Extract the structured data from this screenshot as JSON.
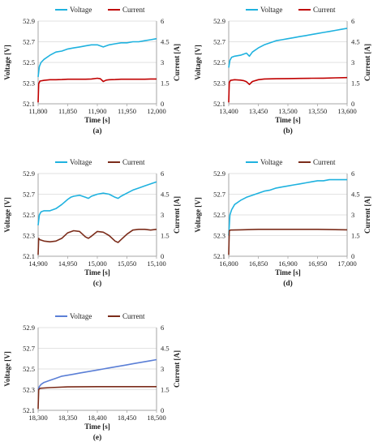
{
  "figure": {
    "background": "#ffffff",
    "axis_color": "#a6a6a6",
    "grid_color": "#d9d9d9",
    "tick_text_color": "#222222"
  },
  "chart_data": [
    {
      "type": "line",
      "panel_label": "(a)",
      "xlabel": "Time [s]",
      "ylabel_left": "Voltage [V]",
      "ylabel_right": "Current [A]",
      "xlim": [
        11800,
        12000
      ],
      "xticks": [
        11800,
        11850,
        11900,
        11950,
        12000
      ],
      "xtick_labels": [
        "11,800",
        "11,850",
        "11,900",
        "11,950",
        "12,000"
      ],
      "ylim_left": [
        52.1,
        52.9
      ],
      "yticks_left": [
        "52.1",
        "52.3",
        "52.5",
        "52.7",
        "52.9"
      ],
      "ylim_right": [
        0,
        6
      ],
      "yticks_right": [
        "0",
        "1.5",
        "3",
        "4.5",
        "6"
      ],
      "grid": "horizontal",
      "legend_position": "top",
      "legend_items": [
        "Voltage",
        "Current"
      ],
      "series": [
        {
          "name": "Voltage",
          "axis": "left",
          "color": "#1fb2df",
          "x": [
            11800,
            11802,
            11805,
            11810,
            11820,
            11830,
            11840,
            11850,
            11860,
            11870,
            11880,
            11890,
            11900,
            11910,
            11920,
            11930,
            11940,
            11950,
            11960,
            11970,
            11980,
            11990,
            12000
          ],
          "y": [
            52.36,
            52.46,
            52.5,
            52.53,
            52.57,
            52.6,
            52.61,
            52.63,
            52.64,
            52.65,
            52.66,
            52.67,
            52.67,
            52.65,
            52.67,
            52.68,
            52.69,
            52.69,
            52.7,
            52.7,
            52.71,
            52.72,
            52.73
          ]
        },
        {
          "name": "Current",
          "axis": "right",
          "color": "#c00000",
          "x": [
            11800,
            11801,
            11803,
            11810,
            11820,
            11830,
            11840,
            11850,
            11860,
            11870,
            11880,
            11890,
            11900,
            11905,
            11910,
            11915,
            11920,
            11930,
            11940,
            11950,
            11960,
            11970,
            11980,
            11990,
            12000
          ],
          "y": [
            0.1,
            1.45,
            1.65,
            1.7,
            1.75,
            1.75,
            1.76,
            1.78,
            1.78,
            1.78,
            1.78,
            1.8,
            1.85,
            1.82,
            1.62,
            1.72,
            1.75,
            1.76,
            1.78,
            1.78,
            1.78,
            1.78,
            1.78,
            1.8,
            1.8
          ]
        }
      ]
    },
    {
      "type": "line",
      "panel_label": "(b)",
      "xlabel": "Time [s]",
      "ylabel_left": "Voltage [V]",
      "ylabel_right": "Current [A]",
      "xlim": [
        13400,
        13600
      ],
      "xticks": [
        13400,
        13450,
        13500,
        13550,
        13600
      ],
      "xtick_labels": [
        "13,400",
        "13,450",
        "13,500",
        "13,550",
        "13,600"
      ],
      "ylim_left": [
        52.1,
        52.9
      ],
      "yticks_left": [
        "52.1",
        "52.3",
        "52.5",
        "52.7",
        "52.9"
      ],
      "ylim_right": [
        0,
        6
      ],
      "yticks_right": [
        "0",
        "1.5",
        "3",
        "4.5",
        "6"
      ],
      "grid": "horizontal",
      "legend_position": "top",
      "legend_items": [
        "Voltage",
        "Current"
      ],
      "series": [
        {
          "name": "Voltage",
          "axis": "left",
          "color": "#1fb2df",
          "x": [
            13400,
            13402,
            13405,
            13410,
            13420,
            13430,
            13435,
            13440,
            13450,
            13460,
            13470,
            13480,
            13490,
            13500,
            13510,
            13520,
            13530,
            13540,
            13550,
            13560,
            13570,
            13580,
            13590,
            13600
          ],
          "y": [
            52.45,
            52.52,
            52.55,
            52.56,
            52.57,
            52.59,
            52.56,
            52.6,
            52.64,
            52.67,
            52.69,
            52.71,
            52.72,
            52.73,
            52.74,
            52.75,
            52.76,
            52.77,
            52.78,
            52.79,
            52.8,
            52.81,
            52.82,
            52.83
          ]
        },
        {
          "name": "Current",
          "axis": "right",
          "color": "#c00000",
          "x": [
            13400,
            13401,
            13403,
            13410,
            13420,
            13425,
            13430,
            13435,
            13440,
            13450,
            13460,
            13480,
            13500,
            13520,
            13540,
            13560,
            13580,
            13600
          ],
          "y": [
            0.1,
            1.55,
            1.7,
            1.75,
            1.72,
            1.68,
            1.6,
            1.4,
            1.62,
            1.75,
            1.8,
            1.82,
            1.83,
            1.84,
            1.85,
            1.86,
            1.88,
            1.9
          ]
        }
      ]
    },
    {
      "type": "line",
      "panel_label": "(c)",
      "xlabel": "Time [s]",
      "ylabel_left": "Voltage [V]",
      "ylabel_right": "Current [A]",
      "xlim": [
        14900,
        15100
      ],
      "xticks": [
        14900,
        14950,
        15000,
        15050,
        15100
      ],
      "xtick_labels": [
        "14,900",
        "14,950",
        "15,000",
        "15,050",
        "15,100"
      ],
      "ylim_left": [
        52.1,
        52.9
      ],
      "yticks_left": [
        "52.1",
        "52.3",
        "52.5",
        "52.7",
        "52.9"
      ],
      "ylim_right": [
        0,
        6
      ],
      "yticks_right": [
        "0",
        "1.5",
        "3",
        "4.5",
        "6"
      ],
      "grid": "horizontal",
      "legend_position": "top",
      "legend_items": [
        "Voltage",
        "Current"
      ],
      "series": [
        {
          "name": "Voltage",
          "axis": "left",
          "color": "#1fb2df",
          "x": [
            14900,
            14902,
            14905,
            14910,
            14920,
            14930,
            14940,
            14950,
            14955,
            14960,
            14970,
            14980,
            14985,
            14990,
            15000,
            15010,
            15020,
            15030,
            15035,
            15040,
            15050,
            15060,
            15070,
            15080,
            15090,
            15100
          ],
          "y": [
            52.4,
            52.5,
            52.53,
            52.54,
            52.54,
            52.56,
            52.6,
            52.65,
            52.67,
            52.68,
            52.69,
            52.67,
            52.66,
            52.68,
            52.7,
            52.71,
            52.7,
            52.67,
            52.66,
            52.68,
            52.71,
            52.74,
            52.76,
            52.78,
            52.8,
            52.82
          ]
        },
        {
          "name": "Current",
          "axis": "right",
          "color": "#7b2c1a",
          "x": [
            14900,
            14901,
            14903,
            14910,
            14920,
            14930,
            14940,
            14950,
            14960,
            14970,
            14980,
            14985,
            14990,
            15000,
            15010,
            15020,
            15030,
            15035,
            15040,
            15050,
            15060,
            15070,
            15080,
            15090,
            15100
          ],
          "y": [
            0.1,
            1.3,
            1.2,
            1.1,
            1.05,
            1.1,
            1.3,
            1.7,
            1.85,
            1.8,
            1.4,
            1.3,
            1.45,
            1.8,
            1.75,
            1.5,
            1.1,
            1.0,
            1.2,
            1.6,
            1.9,
            1.95,
            1.95,
            1.9,
            1.95
          ]
        }
      ]
    },
    {
      "type": "line",
      "panel_label": "(d)",
      "xlabel": "Time [s]",
      "ylabel_left": "Voltage [V]",
      "ylabel_right": "Current [A]",
      "xlim": [
        16800,
        17000
      ],
      "xticks": [
        16800,
        16850,
        16900,
        16950,
        17000
      ],
      "xtick_labels": [
        "16,800",
        "16,850",
        "16,900",
        "16,950",
        "17,000"
      ],
      "ylim_left": [
        52.1,
        52.9
      ],
      "yticks_left": [
        "52.1",
        "52.3",
        "52.5",
        "52.7",
        "52.9"
      ],
      "ylim_right": [
        0,
        6
      ],
      "yticks_right": [
        "0",
        "1.5",
        "3",
        "4.5",
        "6"
      ],
      "grid": "horizontal",
      "legend_position": "top",
      "legend_items": [
        "Voltage",
        "Current"
      ],
      "series": [
        {
          "name": "Voltage",
          "axis": "left",
          "color": "#1fb2df",
          "x": [
            16800,
            16802,
            16805,
            16810,
            16820,
            16830,
            16840,
            16850,
            16860,
            16870,
            16880,
            16890,
            16900,
            16910,
            16920,
            16930,
            16940,
            16950,
            16960,
            16970,
            16980,
            16990,
            17000
          ],
          "y": [
            52.3,
            52.5,
            52.55,
            52.6,
            52.64,
            52.67,
            52.69,
            52.71,
            52.73,
            52.74,
            52.76,
            52.77,
            52.78,
            52.79,
            52.8,
            52.81,
            52.82,
            52.83,
            52.83,
            52.84,
            52.84,
            52.84,
            52.84
          ]
        },
        {
          "name": "Current",
          "axis": "right",
          "color": "#7b2c1a",
          "x": [
            16800,
            16801,
            16803,
            16820,
            16850,
            16900,
            16950,
            16980,
            17000
          ],
          "y": [
            0.1,
            1.85,
            1.9,
            1.92,
            1.95,
            1.95,
            1.95,
            1.93,
            1.92
          ]
        }
      ]
    },
    {
      "type": "line",
      "panel_label": "(e)",
      "xlabel": "Time [s]",
      "ylabel_left": "Voltage [V]",
      "ylabel_right": "Current [A]",
      "xlim": [
        18300,
        18500
      ],
      "xticks": [
        18300,
        18350,
        18400,
        18450,
        18500
      ],
      "xtick_labels": [
        "18,300",
        "18,350",
        "18,400",
        "18,450",
        "18,500"
      ],
      "ylim_left": [
        52.1,
        52.9
      ],
      "yticks_left": [
        "52.1",
        "52.3",
        "52.5",
        "52.7",
        "52.9"
      ],
      "ylim_right": [
        0,
        6
      ],
      "yticks_right": [
        "0",
        "1.5",
        "3",
        "4.5",
        "6"
      ],
      "grid": "horizontal",
      "legend_position": "top",
      "legend_items": [
        "Voltage",
        "Current"
      ],
      "series": [
        {
          "name": "Voltage",
          "axis": "left",
          "color": "#5b7fd6",
          "x": [
            18300,
            18302,
            18305,
            18310,
            18320,
            18330,
            18340,
            18350,
            18360,
            18370,
            18380,
            18390,
            18400,
            18410,
            18420,
            18430,
            18440,
            18450,
            18460,
            18470,
            18480,
            18490,
            18500
          ],
          "y": [
            52.3,
            52.33,
            52.35,
            52.37,
            52.39,
            52.41,
            52.43,
            52.44,
            52.45,
            52.46,
            52.47,
            52.48,
            52.49,
            52.5,
            52.51,
            52.52,
            52.53,
            52.54,
            52.55,
            52.56,
            52.57,
            52.58,
            52.59
          ]
        },
        {
          "name": "Current",
          "axis": "right",
          "color": "#7b2c1a",
          "x": [
            18300,
            18301,
            18303,
            18320,
            18350,
            18400,
            18450,
            18500
          ],
          "y": [
            0.1,
            1.5,
            1.6,
            1.65,
            1.7,
            1.72,
            1.72,
            1.72
          ]
        }
      ]
    }
  ]
}
